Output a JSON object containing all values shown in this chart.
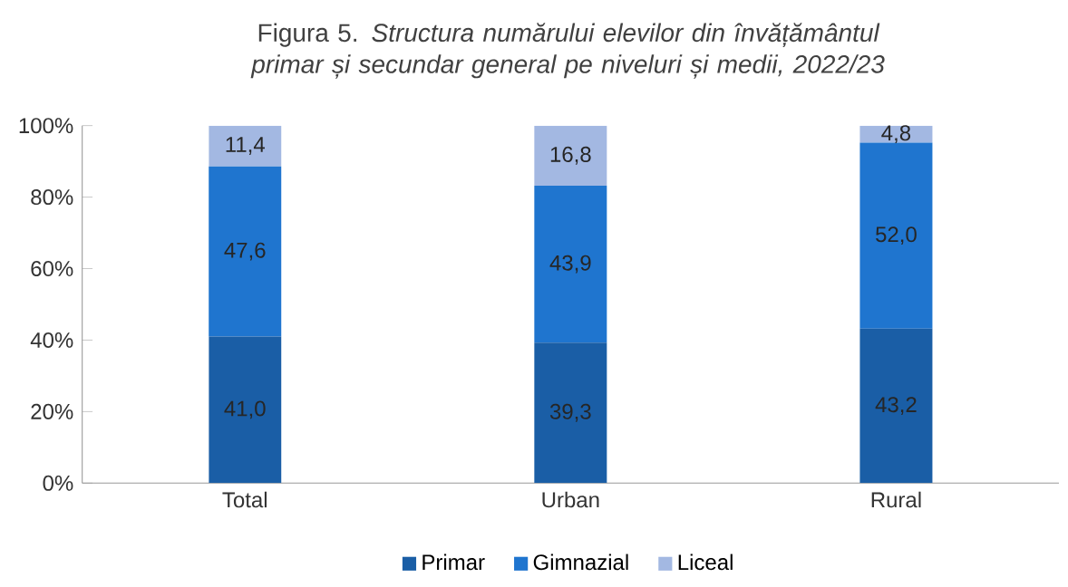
{
  "chart_data": {
    "type": "bar",
    "stacked": true,
    "title": "Figura 5. *Structura numărului elevilor din învățământul primar și secundar general pe niveluri și medii, 2022/23*",
    "categories": [
      "Total",
      "Urban",
      "Rural"
    ],
    "series": [
      {
        "name": "Primar",
        "color": "#1a5ea6",
        "values": [
          41.0,
          39.3,
          43.2
        ],
        "value_labels": [
          "41,0",
          "39,3",
          "43,2"
        ]
      },
      {
        "name": "Gimnazial",
        "color": "#1f75cf",
        "values": [
          47.6,
          43.9,
          52.0
        ],
        "value_labels": [
          "47,6",
          "43,9",
          "52,0"
        ]
      },
      {
        "name": "Liceal",
        "color": "#a3b8e2",
        "values": [
          11.4,
          16.8,
          4.8
        ],
        "value_labels": [
          "11,4",
          "16,8",
          "4,8"
        ]
      }
    ],
    "ylim": [
      0,
      100
    ],
    "yticks": [
      {
        "value": 0,
        "label": "0%"
      },
      {
        "value": 20,
        "label": "20%"
      },
      {
        "value": 40,
        "label": "40%"
      },
      {
        "value": 60,
        "label": "60%"
      },
      {
        "value": 80,
        "label": "80%"
      },
      {
        "value": 100,
        "label": "100%"
      }
    ],
    "grid": false,
    "legend": "bottom"
  }
}
